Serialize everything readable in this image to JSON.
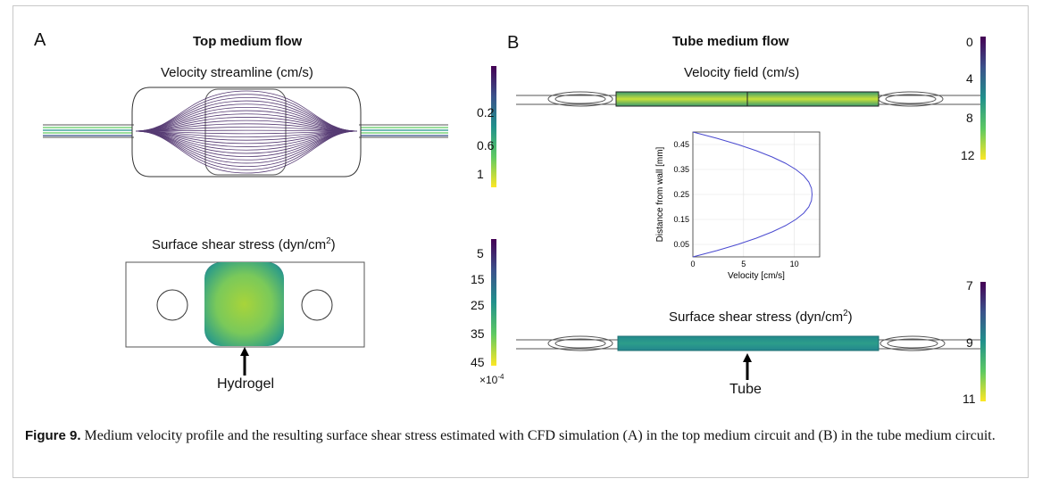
{
  "panel_a": {
    "letter": "A",
    "title": "Top medium flow",
    "streamline_label": "Velocity streamline (cm/s)",
    "streamline_colorbar_ticks": [
      "0.2",
      "0.6",
      "1"
    ],
    "shear_label": "Surface shear stress (dyn/cm",
    "shear_label_sup": "2",
    "shear_label_end": ")",
    "shear_colorbar_ticks": [
      "5",
      "15",
      "25",
      "35",
      "45"
    ],
    "shear_colorbar_multiplier": "×10",
    "shear_colorbar_exp": "-4",
    "annotation": "Hydrogel"
  },
  "panel_b": {
    "letter": "B",
    "title": "Tube medium flow",
    "velocity_label": "Velocity field (cm/s)",
    "velocity_colorbar_ticks": [
      "0",
      "4",
      "8",
      "12"
    ],
    "shear_label": "Surface shear stress (dyn/cm",
    "shear_label_sup": "2",
    "shear_label_end": ")",
    "shear_colorbar_ticks": [
      "7",
      "9",
      "11"
    ],
    "annotation": "Tube"
  },
  "chart_data": {
    "type": "line",
    "xlabel": "Velocity [cm/s]",
    "ylabel": "Distance from wall [mm]",
    "xlim": [
      0,
      12.5
    ],
    "ylim": [
      0,
      0.5
    ],
    "xticks": [
      0,
      5,
      10
    ],
    "yticks": [
      0.05,
      0.15,
      0.25,
      0.35,
      0.45
    ],
    "grid": true,
    "series": [
      {
        "color": "#4a4ad0",
        "x": [
          0,
          2.35,
          4.44,
          6.26,
          7.82,
          9.12,
          10.15,
          10.92,
          11.43,
          11.69,
          11.75,
          11.69,
          11.43,
          10.92,
          10.15,
          9.12,
          7.82,
          6.26,
          4.44,
          2.35,
          0
        ],
        "y": [
          0,
          0.025,
          0.05,
          0.075,
          0.1,
          0.125,
          0.15,
          0.175,
          0.2,
          0.225,
          0.25,
          0.275,
          0.3,
          0.325,
          0.35,
          0.375,
          0.4,
          0.425,
          0.45,
          0.475,
          0.5
        ]
      }
    ]
  },
  "caption": {
    "label": "Figure 9.",
    "text": " Medium velocity profile and the resulting surface shear stress estimated with CFD simulation (A) in the top medium circuit and (B) in the tube medium circuit."
  },
  "colors": {
    "viridis_dark": "#440154",
    "viridis_mid": "#21918c",
    "viridis_light": "#fde725",
    "streamline": "#3a1a5c"
  }
}
